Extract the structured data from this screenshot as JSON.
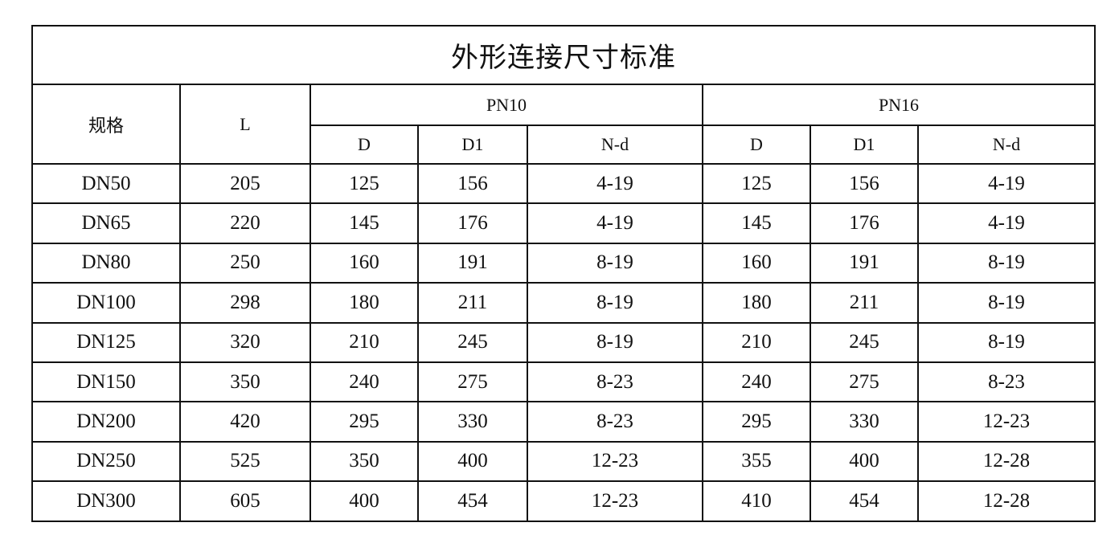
{
  "title": "外形连接尺寸标准",
  "headers": {
    "spec": "规格",
    "L": "L",
    "groups": [
      "PN10",
      "PN16"
    ],
    "sub": [
      "D",
      "D1",
      "N-d"
    ]
  },
  "rows": [
    [
      "DN50",
      "205",
      "125",
      "156",
      "4-19",
      "125",
      "156",
      "4-19"
    ],
    [
      "DN65",
      "220",
      "145",
      "176",
      "4-19",
      "145",
      "176",
      "4-19"
    ],
    [
      "DN80",
      "250",
      "160",
      "191",
      "8-19",
      "160",
      "191",
      "8-19"
    ],
    [
      "DN100",
      "298",
      "180",
      "211",
      "8-19",
      "180",
      "211",
      "8-19"
    ],
    [
      "DN125",
      "320",
      "210",
      "245",
      "8-19",
      "210",
      "245",
      "8-19"
    ],
    [
      "DN150",
      "350",
      "240",
      "275",
      "8-23",
      "240",
      "275",
      "8-23"
    ],
    [
      "DN200",
      "420",
      "295",
      "330",
      "8-23",
      "295",
      "330",
      "12-23"
    ],
    [
      "DN250",
      "525",
      "350",
      "400",
      "12-23",
      "355",
      "400",
      "12-28"
    ],
    [
      "DN300",
      "605",
      "400",
      "454",
      "12-23",
      "410",
      "454",
      "12-28"
    ]
  ]
}
